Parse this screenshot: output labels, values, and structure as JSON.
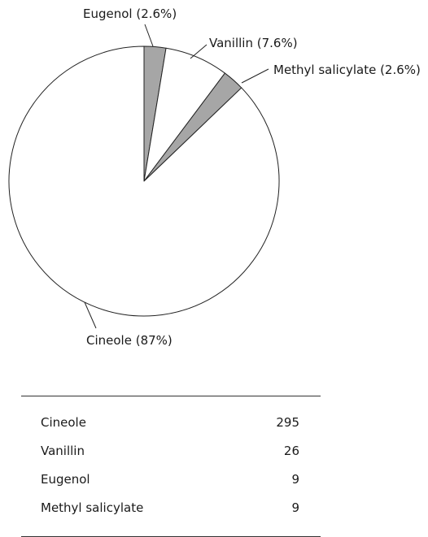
{
  "chart_data": {
    "type": "pie",
    "start_angle_deg": 0,
    "direction": "clockwise",
    "slices": [
      {
        "label": "Eugenol (2.6%)",
        "name": "Eugenol",
        "percent": 2.6,
        "value": 9,
        "color": "#a6a6a6"
      },
      {
        "label": "Vanillin (7.6%)",
        "name": "Vanillin",
        "percent": 7.6,
        "value": 26,
        "color": "#ffffff"
      },
      {
        "label": "Methyl salicylate (2.6%)",
        "name": "Methyl salicylate",
        "percent": 2.6,
        "value": 9,
        "color": "#a6a6a6"
      },
      {
        "label": "Cineole (87%)",
        "name": "Cineole",
        "percent": 87,
        "value": 295,
        "color": "#ffffff"
      }
    ]
  },
  "table": {
    "rows": [
      {
        "name": "Cineole",
        "value": "295"
      },
      {
        "name": "Vanillin",
        "value": "26"
      },
      {
        "name": "Eugenol",
        "value": "9"
      },
      {
        "name": "Methyl salicylate",
        "value": "9"
      }
    ]
  }
}
